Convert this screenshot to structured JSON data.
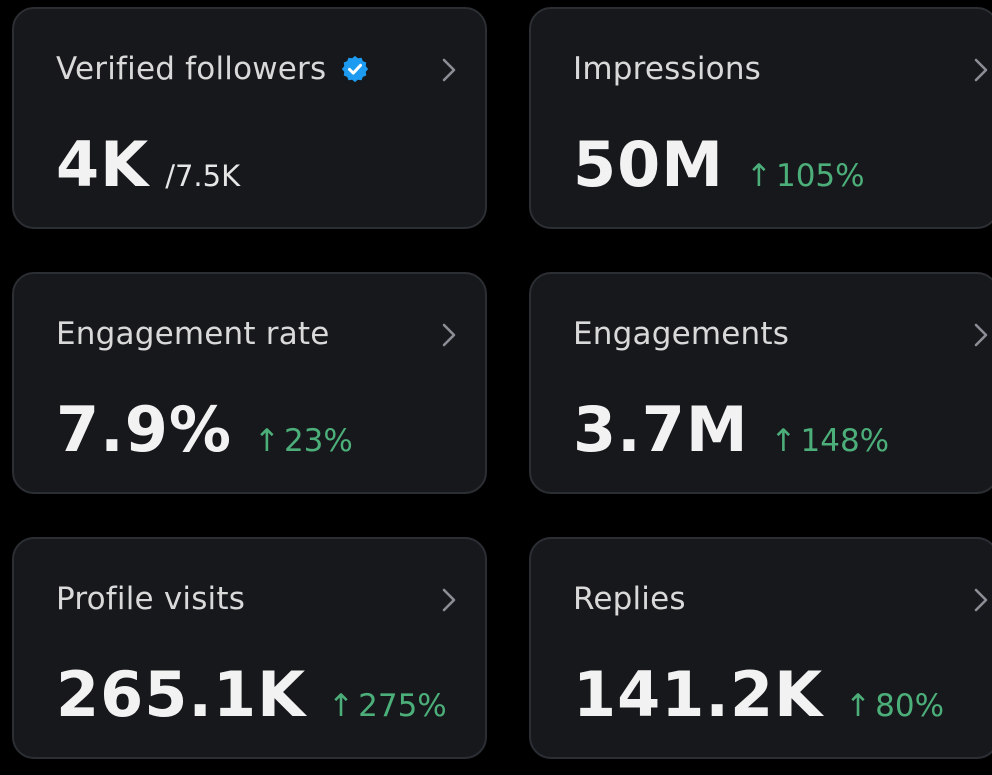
{
  "cards": [
    {
      "label": "Verified followers",
      "value": "4K",
      "sub": "/7.5K",
      "icon": "verified-badge-icon"
    },
    {
      "label": "Impressions",
      "value": "50M",
      "arrow": "↑",
      "change": "105%"
    },
    {
      "label": "Engagement rate",
      "value": "7.9%",
      "arrow": "↑",
      "change": "23%"
    },
    {
      "label": "Engagements",
      "value": "3.7M",
      "arrow": "↑",
      "change": "148%"
    },
    {
      "label": "Profile visits",
      "value": "265.1K",
      "arrow": "↑",
      "change": "275%"
    },
    {
      "label": "Replies",
      "value": "141.2K",
      "arrow": "↑",
      "change": "80%"
    }
  ],
  "colors": {
    "background": "#000000",
    "card": "#16181c",
    "border": "#2b2e33",
    "positive": "#4caf7a",
    "verified": "#1d9bf0"
  }
}
